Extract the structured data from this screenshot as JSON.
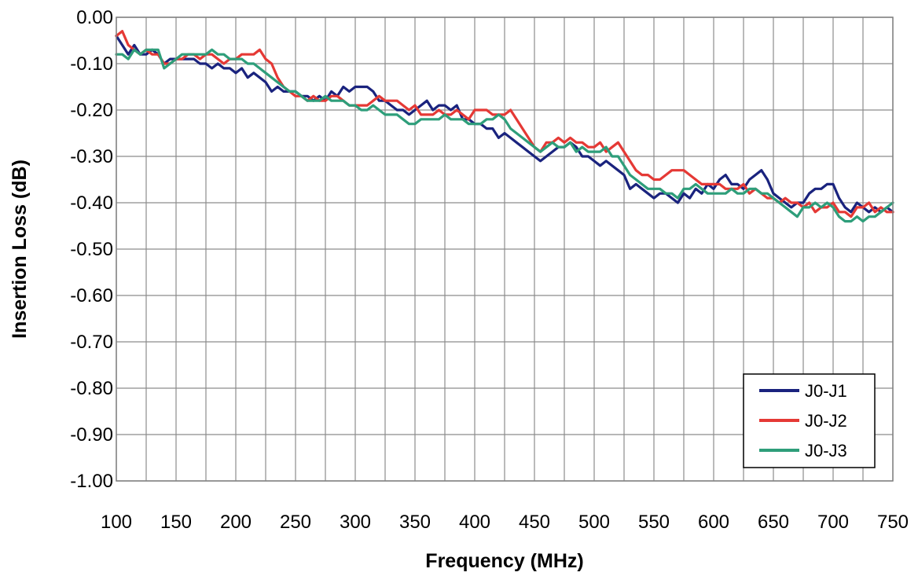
{
  "chart_data": {
    "type": "line",
    "title": "",
    "xlabel": "Frequency (MHz)",
    "ylabel": "Insertion Loss (dB)",
    "xlim": [
      100,
      750
    ],
    "ylim": [
      -1.0,
      0.0
    ],
    "x_ticks": [
      "100",
      "150",
      "200",
      "250",
      "300",
      "350",
      "400",
      "450",
      "500",
      "550",
      "600",
      "650",
      "700",
      "750"
    ],
    "y_ticks": [
      "0.00",
      "-0.10",
      "-0.20",
      "-0.30",
      "-0.40",
      "-0.50",
      "-0.60",
      "-0.70",
      "-0.80",
      "-0.90",
      "-1.00"
    ],
    "grid": true,
    "legend_position": "bottom-right",
    "series": [
      {
        "name": "J0-J1",
        "color": "#1a237e",
        "x": [
          100,
          105,
          110,
          115,
          120,
          125,
          130,
          135,
          140,
          145,
          150,
          155,
          160,
          165,
          170,
          175,
          180,
          185,
          190,
          195,
          200,
          205,
          210,
          215,
          220,
          225,
          230,
          235,
          240,
          245,
          250,
          255,
          260,
          265,
          270,
          275,
          280,
          285,
          290,
          295,
          300,
          305,
          310,
          315,
          320,
          325,
          330,
          335,
          340,
          345,
          350,
          355,
          360,
          365,
          370,
          375,
          380,
          385,
          390,
          395,
          400,
          405,
          410,
          415,
          420,
          425,
          430,
          435,
          440,
          445,
          450,
          455,
          460,
          465,
          470,
          475,
          480,
          485,
          490,
          495,
          500,
          505,
          510,
          515,
          520,
          525,
          530,
          535,
          540,
          545,
          550,
          555,
          560,
          565,
          570,
          575,
          580,
          585,
          590,
          595,
          600,
          605,
          610,
          615,
          620,
          625,
          630,
          635,
          640,
          645,
          650,
          655,
          660,
          665,
          670,
          675,
          680,
          685,
          690,
          695,
          700,
          705,
          710,
          715,
          720,
          725,
          730,
          735,
          740,
          745,
          750
        ],
        "y": [
          -0.04,
          -0.06,
          -0.08,
          -0.06,
          -0.08,
          -0.08,
          -0.07,
          -0.08,
          -0.1,
          -0.09,
          -0.09,
          -0.09,
          -0.09,
          -0.09,
          -0.1,
          -0.1,
          -0.11,
          -0.1,
          -0.11,
          -0.11,
          -0.12,
          -0.11,
          -0.13,
          -0.12,
          -0.13,
          -0.14,
          -0.16,
          -0.15,
          -0.16,
          -0.16,
          -0.16,
          -0.17,
          -0.17,
          -0.18,
          -0.17,
          -0.18,
          -0.16,
          -0.17,
          -0.15,
          -0.16,
          -0.15,
          -0.15,
          -0.15,
          -0.16,
          -0.18,
          -0.18,
          -0.19,
          -0.2,
          -0.2,
          -0.21,
          -0.2,
          -0.19,
          -0.18,
          -0.2,
          -0.19,
          -0.19,
          -0.2,
          -0.19,
          -0.22,
          -0.22,
          -0.23,
          -0.23,
          -0.24,
          -0.24,
          -0.26,
          -0.25,
          -0.26,
          -0.27,
          -0.28,
          -0.29,
          -0.3,
          -0.31,
          -0.3,
          -0.29,
          -0.28,
          -0.28,
          -0.27,
          -0.28,
          -0.3,
          -0.3,
          -0.31,
          -0.32,
          -0.31,
          -0.32,
          -0.33,
          -0.34,
          -0.37,
          -0.36,
          -0.37,
          -0.38,
          -0.39,
          -0.38,
          -0.38,
          -0.39,
          -0.4,
          -0.38,
          -0.39,
          -0.37,
          -0.38,
          -0.36,
          -0.37,
          -0.35,
          -0.34,
          -0.36,
          -0.36,
          -0.37,
          -0.35,
          -0.34,
          -0.33,
          -0.35,
          -0.38,
          -0.39,
          -0.4,
          -0.41,
          -0.4,
          -0.4,
          -0.38,
          -0.37,
          -0.37,
          -0.36,
          -0.36,
          -0.39,
          -0.41,
          -0.42,
          -0.4,
          -0.41,
          -0.42,
          -0.41,
          -0.42,
          -0.41,
          -0.42
        ]
      },
      {
        "name": "J0-J2",
        "color": "#e53935",
        "x": [
          100,
          105,
          110,
          115,
          120,
          125,
          130,
          135,
          140,
          145,
          150,
          155,
          160,
          165,
          170,
          175,
          180,
          185,
          190,
          195,
          200,
          205,
          210,
          215,
          220,
          225,
          230,
          235,
          240,
          245,
          250,
          255,
          260,
          265,
          270,
          275,
          280,
          285,
          290,
          295,
          300,
          305,
          310,
          315,
          320,
          325,
          330,
          335,
          340,
          345,
          350,
          355,
          360,
          365,
          370,
          375,
          380,
          385,
          390,
          395,
          400,
          405,
          410,
          415,
          420,
          425,
          430,
          435,
          440,
          445,
          450,
          455,
          460,
          465,
          470,
          475,
          480,
          485,
          490,
          495,
          500,
          505,
          510,
          515,
          520,
          525,
          530,
          535,
          540,
          545,
          550,
          555,
          560,
          565,
          570,
          575,
          580,
          585,
          590,
          595,
          600,
          605,
          610,
          615,
          620,
          625,
          630,
          635,
          640,
          645,
          650,
          655,
          660,
          665,
          670,
          675,
          680,
          685,
          690,
          695,
          700,
          705,
          710,
          715,
          720,
          725,
          730,
          735,
          740,
          745,
          750
        ],
        "y": [
          -0.04,
          -0.03,
          -0.06,
          -0.07,
          -0.08,
          -0.07,
          -0.08,
          -0.08,
          -0.1,
          -0.1,
          -0.09,
          -0.09,
          -0.08,
          -0.08,
          -0.09,
          -0.08,
          -0.08,
          -0.09,
          -0.1,
          -0.09,
          -0.09,
          -0.08,
          -0.08,
          -0.08,
          -0.07,
          -0.09,
          -0.1,
          -0.13,
          -0.15,
          -0.16,
          -0.17,
          -0.17,
          -0.18,
          -0.17,
          -0.18,
          -0.18,
          -0.17,
          -0.17,
          -0.18,
          -0.19,
          -0.19,
          -0.19,
          -0.19,
          -0.18,
          -0.17,
          -0.18,
          -0.18,
          -0.18,
          -0.19,
          -0.2,
          -0.19,
          -0.21,
          -0.21,
          -0.21,
          -0.2,
          -0.21,
          -0.21,
          -0.2,
          -0.21,
          -0.22,
          -0.2,
          -0.2,
          -0.2,
          -0.21,
          -0.21,
          -0.21,
          -0.2,
          -0.22,
          -0.24,
          -0.26,
          -0.28,
          -0.29,
          -0.27,
          -0.27,
          -0.26,
          -0.27,
          -0.26,
          -0.27,
          -0.27,
          -0.28,
          -0.28,
          -0.27,
          -0.29,
          -0.28,
          -0.27,
          -0.29,
          -0.31,
          -0.33,
          -0.34,
          -0.34,
          -0.35,
          -0.35,
          -0.34,
          -0.33,
          -0.33,
          -0.33,
          -0.34,
          -0.35,
          -0.36,
          -0.36,
          -0.36,
          -0.36,
          -0.37,
          -0.37,
          -0.37,
          -0.36,
          -0.38,
          -0.37,
          -0.38,
          -0.39,
          -0.39,
          -0.4,
          -0.39,
          -0.4,
          -0.4,
          -0.41,
          -0.4,
          -0.42,
          -0.41,
          -0.41,
          -0.4,
          -0.42,
          -0.42,
          -0.43,
          -0.41,
          -0.41,
          -0.4,
          -0.42,
          -0.41,
          -0.42,
          -0.42
        ]
      },
      {
        "name": "J0-J3",
        "color": "#2e9e7a",
        "x": [
          100,
          105,
          110,
          115,
          120,
          125,
          130,
          135,
          140,
          145,
          150,
          155,
          160,
          165,
          170,
          175,
          180,
          185,
          190,
          195,
          200,
          205,
          210,
          215,
          220,
          225,
          230,
          235,
          240,
          245,
          250,
          255,
          260,
          265,
          270,
          275,
          280,
          285,
          290,
          295,
          300,
          305,
          310,
          315,
          320,
          325,
          330,
          335,
          340,
          345,
          350,
          355,
          360,
          365,
          370,
          375,
          380,
          385,
          390,
          395,
          400,
          405,
          410,
          415,
          420,
          425,
          430,
          435,
          440,
          445,
          450,
          455,
          460,
          465,
          470,
          475,
          480,
          485,
          490,
          495,
          500,
          505,
          510,
          515,
          520,
          525,
          530,
          535,
          540,
          545,
          550,
          555,
          560,
          565,
          570,
          575,
          580,
          585,
          590,
          595,
          600,
          605,
          610,
          615,
          620,
          625,
          630,
          635,
          640,
          645,
          650,
          655,
          660,
          665,
          670,
          675,
          680,
          685,
          690,
          695,
          700,
          705,
          710,
          715,
          720,
          725,
          730,
          735,
          740,
          745,
          750
        ],
        "y": [
          -0.08,
          -0.08,
          -0.09,
          -0.07,
          -0.08,
          -0.07,
          -0.07,
          -0.07,
          -0.11,
          -0.1,
          -0.09,
          -0.08,
          -0.08,
          -0.08,
          -0.08,
          -0.08,
          -0.07,
          -0.08,
          -0.08,
          -0.09,
          -0.09,
          -0.09,
          -0.1,
          -0.1,
          -0.11,
          -0.12,
          -0.13,
          -0.14,
          -0.15,
          -0.16,
          -0.16,
          -0.17,
          -0.18,
          -0.18,
          -0.18,
          -0.17,
          -0.18,
          -0.18,
          -0.18,
          -0.19,
          -0.19,
          -0.2,
          -0.2,
          -0.19,
          -0.2,
          -0.21,
          -0.21,
          -0.21,
          -0.22,
          -0.23,
          -0.23,
          -0.22,
          -0.22,
          -0.22,
          -0.22,
          -0.21,
          -0.22,
          -0.22,
          -0.22,
          -0.23,
          -0.23,
          -0.23,
          -0.22,
          -0.22,
          -0.21,
          -0.22,
          -0.24,
          -0.25,
          -0.26,
          -0.27,
          -0.28,
          -0.29,
          -0.28,
          -0.27,
          -0.28,
          -0.28,
          -0.27,
          -0.29,
          -0.28,
          -0.29,
          -0.29,
          -0.29,
          -0.28,
          -0.3,
          -0.3,
          -0.32,
          -0.34,
          -0.35,
          -0.36,
          -0.37,
          -0.37,
          -0.37,
          -0.38,
          -0.38,
          -0.39,
          -0.37,
          -0.37,
          -0.36,
          -0.37,
          -0.38,
          -0.38,
          -0.38,
          -0.38,
          -0.37,
          -0.38,
          -0.38,
          -0.37,
          -0.37,
          -0.38,
          -0.38,
          -0.39,
          -0.4,
          -0.41,
          -0.42,
          -0.43,
          -0.41,
          -0.41,
          -0.4,
          -0.41,
          -0.4,
          -0.41,
          -0.43,
          -0.44,
          -0.44,
          -0.43,
          -0.44,
          -0.43,
          -0.43,
          -0.42,
          -0.41,
          -0.4
        ]
      }
    ]
  }
}
